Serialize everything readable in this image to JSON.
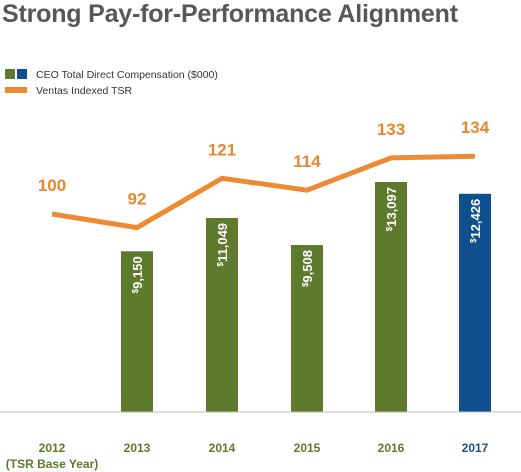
{
  "title": "Strong Pay-for-Performance Alignment",
  "colors": {
    "bar_green": "#5e7a2c",
    "bar_blue": "#0f4f90",
    "tsr_line": "#ed8b34",
    "x_label_green": "#5d7a2b",
    "x_label_blue": "#1e4f8c",
    "title": "#575757"
  },
  "chart_data": {
    "type": "bar",
    "categories": [
      "2012",
      "2013",
      "2014",
      "2015",
      "2016",
      "2017"
    ],
    "category_sublabels": [
      "(TSR Base Year)",
      "",
      "",
      "",
      "",
      ""
    ],
    "series": [
      {
        "name": "CEO Total Direct Compensation ($000)",
        "type": "bar",
        "values": [
          null,
          9150,
          11049,
          9508,
          13097,
          12426
        ],
        "labels": [
          "",
          "9,150",
          "11,049",
          "9,508",
          "13,097",
          "12,426"
        ],
        "currency_symbol": "$",
        "colors": [
          "#5e7a2c",
          "#5e7a2c",
          "#5e7a2c",
          "#5e7a2c",
          "#5e7a2c",
          "#0f4f90"
        ]
      },
      {
        "name": "Ventas Indexed TSR",
        "type": "line",
        "values": [
          100,
          92,
          121,
          114,
          133,
          134
        ],
        "labels": [
          "100",
          "92",
          "121",
          "114",
          "133",
          "134"
        ]
      }
    ],
    "legend_position": "top-left",
    "grid": false
  }
}
